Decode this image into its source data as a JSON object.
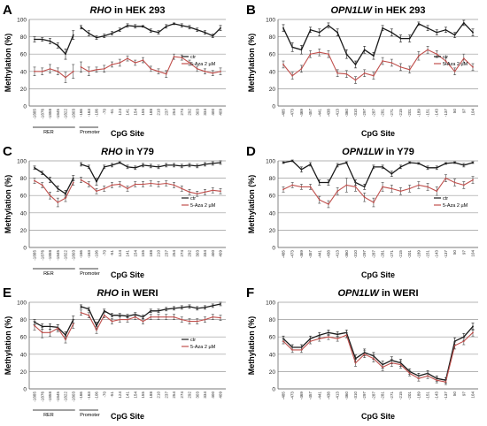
{
  "figure": {
    "y_label": "Methylation (%)",
    "x_label": "CpG Site",
    "legend": {
      "ctr": "ctr",
      "aza": "5-Aza 2 µM"
    },
    "region_labels": {
      "rer": "RER",
      "promoter": "Promoter"
    },
    "y_ticks": [
      "0",
      "20",
      "40",
      "60",
      "80",
      "100"
    ]
  },
  "chart_data": [
    {
      "id": "A",
      "panel_letter": "A",
      "title_gene": "RHO",
      "title_rest": " in HEK 293",
      "type": "line",
      "ylim": [
        0,
        100
      ],
      "gene": "RHO",
      "legend_position": "right",
      "categories": [
        "-1885",
        "-1876",
        "-1858",
        "-1845",
        "-1822",
        "-1803",
        "-166",
        "-163",
        "-106",
        "-70",
        "-51",
        "124",
        "141",
        "154",
        "155",
        "188",
        "210",
        "237",
        "254",
        "274",
        "292",
        "303",
        "334",
        "400",
        "409"
      ],
      "segments": [
        [
          0,
          5
        ],
        [
          6,
          24
        ]
      ],
      "series": [
        {
          "name": "ctr",
          "color": "#1a1a1a",
          "values": [
            77,
            77,
            75,
            70,
            60,
            82,
            91,
            84,
            79,
            81,
            84,
            88,
            93,
            92,
            92,
            87,
            85,
            92,
            95,
            93,
            91,
            88,
            85,
            81,
            90
          ],
          "errors": [
            3,
            2,
            3,
            3,
            6,
            5,
            2,
            3,
            2,
            2,
            2,
            2,
            2,
            2,
            1,
            2,
            2,
            2,
            1,
            2,
            2,
            2,
            2,
            2,
            3
          ]
        },
        {
          "name": "5-Aza 2 µM",
          "color": "#c0504d",
          "values": [
            40,
            40,
            43,
            40,
            33,
            40,
            45,
            40,
            42,
            43,
            48,
            50,
            55,
            50,
            53,
            43,
            40,
            37,
            57,
            56,
            50,
            43,
            40,
            38,
            40
          ],
          "errors": [
            5,
            4,
            5,
            4,
            6,
            8,
            6,
            5,
            3,
            4,
            3,
            4,
            3,
            3,
            3,
            3,
            3,
            4,
            3,
            3,
            3,
            3,
            3,
            3,
            4
          ]
        }
      ]
    },
    {
      "id": "B",
      "panel_letter": "B",
      "title_gene": "OPN1LW",
      "title_rest": " in HEK 293",
      "type": "line",
      "ylim": [
        0,
        100
      ],
      "gene": "OPN1LW",
      "legend_position": "right",
      "categories": [
        "-485",
        "-473",
        "-469",
        "-457",
        "-441",
        "-438",
        "-413",
        "-360",
        "-310",
        "-297",
        "-287",
        "-281",
        "-271",
        "-215",
        "-201",
        "-189",
        "-151",
        "-143",
        "-137",
        "50",
        "97",
        "104"
      ],
      "segments": [
        [
          0,
          21
        ]
      ],
      "series": [
        {
          "name": "ctr",
          "color": "#1a1a1a",
          "values": [
            90,
            68,
            65,
            88,
            85,
            93,
            85,
            60,
            48,
            65,
            58,
            90,
            85,
            78,
            78,
            95,
            90,
            85,
            88,
            82,
            96,
            85
          ],
          "errors": [
            4,
            5,
            5,
            3,
            4,
            3,
            4,
            5,
            4,
            4,
            4,
            3,
            4,
            4,
            4,
            2,
            3,
            3,
            3,
            3,
            3,
            4
          ]
        },
        {
          "name": "5-Aza 2 µM",
          "color": "#c0504d",
          "values": [
            48,
            35,
            43,
            60,
            62,
            60,
            38,
            37,
            30,
            38,
            35,
            52,
            50,
            45,
            42,
            58,
            65,
            60,
            52,
            40,
            55,
            45
          ],
          "errors": [
            4,
            4,
            4,
            4,
            4,
            4,
            4,
            4,
            4,
            4,
            4,
            4,
            4,
            4,
            4,
            5,
            4,
            4,
            4,
            4,
            5,
            4
          ]
        }
      ]
    },
    {
      "id": "C",
      "panel_letter": "C",
      "title_gene": "RHO",
      "title_rest": " in Y79",
      "type": "line",
      "ylim": [
        0,
        100
      ],
      "gene": "RHO",
      "legend_position": "right",
      "categories": [
        "-1885",
        "-1876",
        "-1858",
        "-1845",
        "-1822",
        "-1803",
        "-166",
        "-163",
        "-106",
        "-70",
        "-51",
        "124",
        "141",
        "154",
        "155",
        "188",
        "210",
        "237",
        "254",
        "274",
        "292",
        "303",
        "334",
        "400",
        "409"
      ],
      "segments": [
        [
          0,
          5
        ],
        [
          6,
          24
        ]
      ],
      "series": [
        {
          "name": "ctr",
          "color": "#1a1a1a",
          "values": [
            92,
            86,
            78,
            68,
            62,
            80,
            96,
            93,
            76,
            93,
            95,
            98,
            93,
            92,
            95,
            94,
            93,
            95,
            95,
            94,
            95,
            94,
            96,
            97,
            98
          ],
          "errors": [
            2,
            2,
            3,
            3,
            4,
            3,
            2,
            2,
            4,
            2,
            2,
            1,
            2,
            2,
            2,
            2,
            2,
            2,
            2,
            2,
            2,
            2,
            2,
            2,
            2
          ]
        },
        {
          "name": "5-Aza 2 µM",
          "color": "#c0504d",
          "values": [
            77,
            72,
            60,
            52,
            57,
            75,
            78,
            73,
            65,
            68,
            72,
            73,
            68,
            73,
            73,
            74,
            73,
            74,
            72,
            68,
            64,
            62,
            64,
            66,
            65
          ],
          "errors": [
            3,
            3,
            4,
            5,
            4,
            3,
            3,
            3,
            3,
            3,
            3,
            3,
            3,
            3,
            3,
            3,
            3,
            3,
            3,
            3,
            3,
            3,
            3,
            3,
            3
          ]
        }
      ]
    },
    {
      "id": "D",
      "panel_letter": "D",
      "title_gene": "OPN1LW",
      "title_rest": " in Y79",
      "type": "line",
      "ylim": [
        0,
        100
      ],
      "gene": "OPN1LW",
      "legend_position": "right",
      "categories": [
        "-485",
        "-473",
        "-469",
        "-457",
        "-441",
        "-438",
        "-413",
        "-360",
        "-310",
        "-297",
        "-287",
        "-281",
        "-271",
        "-215",
        "-201",
        "-189",
        "-151",
        "-143",
        "-137",
        "50",
        "97",
        "104"
      ],
      "segments": [
        [
          0,
          21
        ]
      ],
      "series": [
        {
          "name": "ctr",
          "color": "#1a1a1a",
          "values": [
            98,
            100,
            90,
            96,
            75,
            75,
            95,
            98,
            75,
            70,
            93,
            93,
            85,
            93,
            98,
            97,
            92,
            92,
            97,
            98,
            95,
            98
          ],
          "errors": [
            1,
            1,
            3,
            2,
            3,
            3,
            2,
            1,
            3,
            3,
            2,
            2,
            3,
            2,
            1,
            1,
            2,
            2,
            1,
            1,
            2,
            1
          ]
        },
        {
          "name": "5-Aza 2 µM",
          "color": "#c0504d",
          "values": [
            67,
            72,
            70,
            70,
            55,
            50,
            65,
            72,
            70,
            58,
            52,
            70,
            68,
            65,
            68,
            72,
            70,
            65,
            80,
            75,
            72,
            78
          ],
          "errors": [
            3,
            3,
            3,
            3,
            4,
            4,
            4,
            8,
            5,
            5,
            5,
            5,
            4,
            4,
            4,
            4,
            4,
            5,
            4,
            4,
            4,
            4
          ]
        }
      ]
    },
    {
      "id": "E",
      "panel_letter": "E",
      "title_gene": "RHO",
      "title_rest": " in WERI",
      "type": "line",
      "ylim": [
        0,
        100
      ],
      "gene": "RHO",
      "legend_position": "right",
      "categories": [
        "-1885",
        "-1876",
        "-1858",
        "-1845",
        "-1822",
        "-1803",
        "-166",
        "-163",
        "-106",
        "-70",
        "-51",
        "124",
        "141",
        "154",
        "155",
        "188",
        "210",
        "237",
        "254",
        "274",
        "292",
        "303",
        "334",
        "400",
        "409"
      ],
      "segments": [
        [
          0,
          5
        ],
        [
          6,
          24
        ]
      ],
      "series": [
        {
          "name": "ctr",
          "color": "#1a1a1a",
          "values": [
            77,
            72,
            72,
            71,
            62,
            80,
            95,
            92,
            73,
            90,
            85,
            85,
            84,
            86,
            83,
            90,
            90,
            92,
            93,
            94,
            95,
            93,
            94,
            96,
            98
          ],
          "errors": [
            3,
            3,
            3,
            3,
            4,
            4,
            2,
            2,
            4,
            2,
            2,
            2,
            2,
            2,
            2,
            2,
            2,
            2,
            2,
            2,
            2,
            2,
            2,
            2,
            2
          ]
        },
        {
          "name": "5-Aza 2 µM",
          "color": "#c0504d",
          "values": [
            73,
            65,
            65,
            70,
            57,
            75,
            88,
            85,
            68,
            85,
            78,
            80,
            80,
            83,
            78,
            83,
            83,
            83,
            83,
            80,
            78,
            78,
            80,
            83,
            82
          ],
          "errors": [
            5,
            6,
            4,
            4,
            4,
            5,
            3,
            3,
            4,
            3,
            3,
            3,
            3,
            3,
            3,
            3,
            3,
            3,
            3,
            3,
            3,
            3,
            3,
            3,
            3
          ]
        }
      ]
    },
    {
      "id": "F",
      "panel_letter": "F",
      "title_gene": "OPN1LW",
      "title_rest": " in WERI",
      "type": "line",
      "ylim": [
        0,
        100
      ],
      "gene": "OPN1LW",
      "legend_position": "none",
      "categories": [
        "-485",
        "-473",
        "-469",
        "-457",
        "-441",
        "-438",
        "-413",
        "-360",
        "-310",
        "-297",
        "-287",
        "-281",
        "-271",
        "-215",
        "-201",
        "-189",
        "-151",
        "-143",
        "-137",
        "50",
        "97",
        "104"
      ],
      "segments": [
        [
          0,
          21
        ]
      ],
      "series": [
        {
          "name": "ctr",
          "color": "#1a1a1a",
          "values": [
            58,
            48,
            48,
            58,
            62,
            65,
            63,
            65,
            35,
            42,
            38,
            28,
            33,
            30,
            20,
            15,
            18,
            12,
            10,
            55,
            60,
            72
          ],
          "errors": [
            3,
            3,
            3,
            3,
            3,
            3,
            3,
            3,
            4,
            4,
            4,
            4,
            4,
            4,
            3,
            3,
            3,
            3,
            3,
            4,
            4,
            4
          ]
        },
        {
          "name": "5-Aza 2 µM",
          "color": "#c0504d",
          "values": [
            55,
            45,
            45,
            55,
            58,
            60,
            58,
            62,
            30,
            40,
            35,
            25,
            30,
            28,
            18,
            12,
            15,
            10,
            8,
            50,
            55,
            65
          ],
          "errors": [
            3,
            3,
            3,
            3,
            3,
            3,
            3,
            3,
            4,
            4,
            4,
            4,
            4,
            4,
            3,
            3,
            3,
            3,
            3,
            4,
            4,
            4
          ]
        }
      ]
    }
  ]
}
